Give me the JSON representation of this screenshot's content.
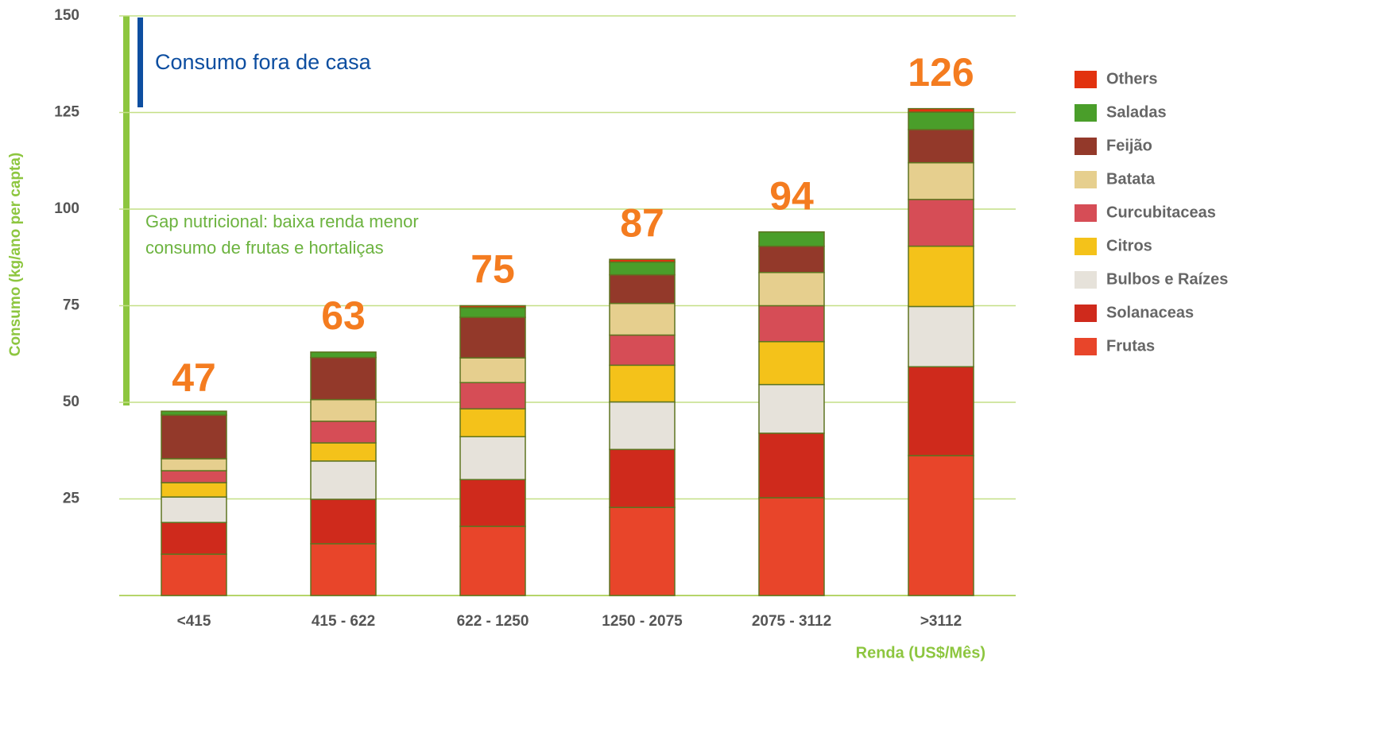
{
  "chart_data": {
    "type": "stacked_bar",
    "title": "Consumo fora de casa",
    "annotation": [
      "Gap nutricional: baixa renda menor",
      "consumo de frutas e hortaliças"
    ],
    "y_label": "Consumo (kg/ano per capta)",
    "x_label": "Renda (US$/Mês)",
    "categories": [
      "<415",
      "415 - 622",
      "622 - 1250",
      "1250 - 2075",
      "2075 - 3112",
      ">3112"
    ],
    "totals": [
      47,
      63,
      75,
      87,
      94,
      126
    ],
    "ylim": [
      0,
      150
    ],
    "yticks": [
      25,
      50,
      75,
      100,
      125,
      150
    ],
    "grid": true,
    "legend": "right",
    "series": [
      {
        "name": "Frutas",
        "color": "#e8452a",
        "values": [
          10.7,
          13.4,
          17.9,
          22.8,
          25.3,
          36.2
        ]
      },
      {
        "name": "Solanaceas",
        "color": "#cf2a1c",
        "values": [
          8.2,
          11.5,
          12.1,
          15,
          16.7,
          23
        ]
      },
      {
        "name": "Bulbos e Raízes",
        "color": "#e6e2da",
        "values": [
          6.6,
          9.9,
          11.1,
          12.3,
          12.6,
          15.6
        ]
      },
      {
        "name": "Citros",
        "color": "#f4c21a",
        "values": [
          3.7,
          4.7,
          7.2,
          9.5,
          11.1,
          15.6
        ]
      },
      {
        "name": "Curcubitaceas",
        "color": "#d64d56",
        "values": [
          3.1,
          5.6,
          6.8,
          7.8,
          9.3,
          12.1
        ]
      },
      {
        "name": "Batata",
        "color": "#e6cf8e",
        "values": [
          3.1,
          5.6,
          6.4,
          8.2,
          8.6,
          9.5
        ]
      },
      {
        "name": "Feijão",
        "color": "#93392a",
        "values": [
          11.3,
          10.9,
          10.5,
          7.4,
          6.8,
          8.6
        ]
      },
      {
        "name": "Saladas",
        "color": "#4a9e2a",
        "values": [
          1,
          1.4,
          2.5,
          3.3,
          3.7,
          4.5
        ]
      },
      {
        "name": "Others",
        "color": "#e2320f",
        "values": [
          0,
          0,
          0.5,
          0.7,
          0,
          0.9
        ]
      }
    ]
  }
}
